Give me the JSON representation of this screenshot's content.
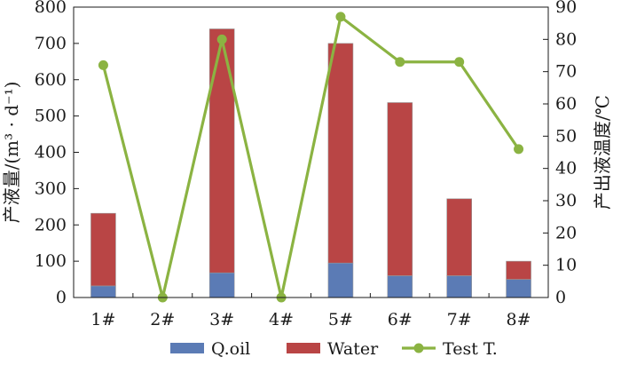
{
  "chart_data": {
    "type": "bar",
    "categories": [
      "1#",
      "2#",
      "3#",
      "4#",
      "5#",
      "6#",
      "7#",
      "8#"
    ],
    "series": [
      {
        "name": "Q.oil",
        "kind": "stacked-bar",
        "axis": "left",
        "color": "#5b7bb5",
        "values": [
          32,
          0,
          68,
          0,
          95,
          60,
          60,
          50
        ]
      },
      {
        "name": "Water",
        "kind": "stacked-bar",
        "axis": "left",
        "color": "#b94545",
        "values": [
          200,
          0,
          672,
          0,
          605,
          477,
          212,
          50
        ]
      },
      {
        "name": "Test T.",
        "kind": "line",
        "axis": "right",
        "color": "#8bb342",
        "values": [
          72,
          0,
          80,
          0,
          87,
          73,
          73,
          46
        ]
      }
    ],
    "y_left": {
      "label": "产液量/(m³ · d⁻¹)",
      "range": [
        0,
        800
      ],
      "ticks": [
        "0",
        "100",
        "200",
        "300",
        "400",
        "500",
        "600",
        "700",
        "800"
      ]
    },
    "y_right": {
      "label": "产出液温度/℃",
      "range": [
        0,
        90
      ],
      "ticks": [
        "0",
        "10",
        "20",
        "30",
        "40",
        "50",
        "60",
        "70",
        "80",
        "90"
      ]
    },
    "legend": [
      "Q.oil",
      "Water",
      "Test T."
    ],
    "legend_position": "bottom"
  }
}
